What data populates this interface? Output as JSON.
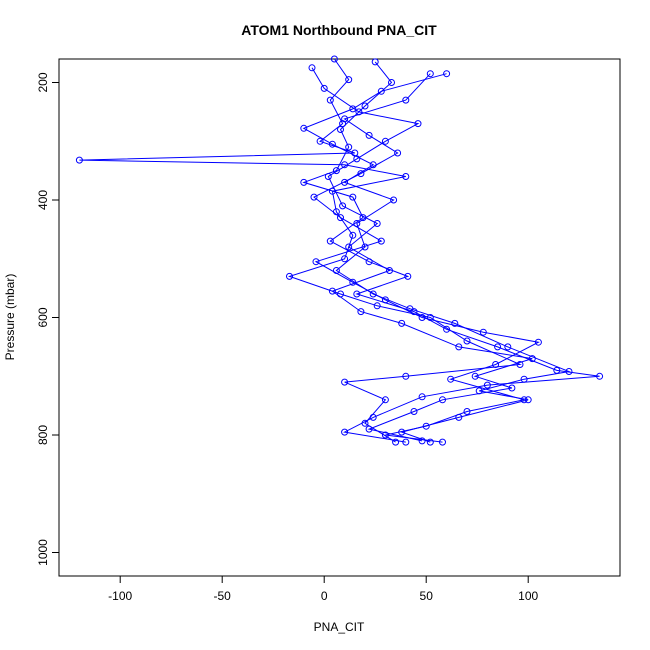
{
  "chart_data": {
    "type": "scatter",
    "title": "ATOM1 Northbound PNA_CIT",
    "xlabel": "PNA_CIT",
    "ylabel": "Pressure (mbar)",
    "xlim": [
      -130,
      145
    ],
    "ylim": [
      1040,
      160
    ],
    "y_reversed": true,
    "x_ticks": [
      -100,
      -50,
      0,
      50,
      100
    ],
    "y_ticks": [
      200,
      400,
      600,
      800,
      1000
    ],
    "grid": false,
    "legend": "none",
    "series_color": "#0000ff",
    "marker": "open-circle",
    "connect_points": true,
    "series": [
      {
        "values": [
          [
            5,
            160
          ],
          [
            12,
            195
          ],
          [
            3,
            230
          ],
          [
            9,
            270
          ],
          [
            -2,
            300
          ],
          [
            15,
            320
          ],
          [
            -120,
            332
          ],
          [
            10,
            340
          ],
          [
            40,
            360
          ],
          [
            4,
            385
          ],
          [
            6,
            420
          ],
          [
            14,
            460
          ],
          [
            10,
            500
          ],
          [
            -17,
            530
          ],
          [
            8,
            560
          ],
          [
            26,
            580
          ],
          [
            52,
            600
          ],
          [
            70,
            640
          ],
          [
            96,
            680
          ],
          [
            40,
            700
          ],
          [
            10,
            710
          ],
          [
            30,
            740
          ],
          [
            20,
            780
          ],
          [
            35,
            812
          ]
        ]
      },
      {
        "values": [
          [
            25,
            165
          ],
          [
            33,
            200
          ],
          [
            20,
            240
          ],
          [
            8,
            280
          ],
          [
            12,
            310
          ],
          [
            6,
            350
          ],
          [
            -10,
            370
          ],
          [
            14,
            395
          ],
          [
            19,
            430
          ],
          [
            3,
            470
          ],
          [
            22,
            505
          ],
          [
            41,
            530
          ],
          [
            16,
            560
          ],
          [
            44,
            590
          ],
          [
            60,
            620
          ],
          [
            85,
            650
          ],
          [
            114,
            690
          ],
          [
            135,
            700
          ],
          [
            80,
            715
          ],
          [
            48,
            735
          ],
          [
            24,
            770
          ],
          [
            10,
            795
          ],
          [
            40,
            812
          ]
        ]
      },
      {
        "values": [
          [
            -6,
            175
          ],
          [
            0,
            210
          ],
          [
            17,
            250
          ],
          [
            46,
            270
          ],
          [
            30,
            300
          ],
          [
            16,
            330
          ],
          [
            2,
            360
          ],
          [
            9,
            410
          ],
          [
            26,
            440
          ],
          [
            12,
            480
          ],
          [
            32,
            520
          ],
          [
            4,
            555
          ],
          [
            18,
            590
          ],
          [
            38,
            610
          ],
          [
            66,
            650
          ],
          [
            102,
            670
          ],
          [
            74,
            700
          ],
          [
            92,
            720
          ],
          [
            58,
            740
          ],
          [
            44,
            760
          ],
          [
            22,
            790
          ],
          [
            48,
            810
          ]
        ]
      },
      {
        "values": [
          [
            52,
            185
          ],
          [
            40,
            230
          ],
          [
            10,
            262
          ],
          [
            22,
            290
          ],
          [
            36,
            320
          ],
          [
            18,
            355
          ],
          [
            -5,
            395
          ],
          [
            8,
            430
          ],
          [
            28,
            470
          ],
          [
            -4,
            505
          ],
          [
            14,
            540
          ],
          [
            30,
            570
          ],
          [
            48,
            600
          ],
          [
            78,
            625
          ],
          [
            105,
            642
          ],
          [
            84,
            680
          ],
          [
            62,
            705
          ],
          [
            98,
            740
          ],
          [
            70,
            760
          ],
          [
            50,
            785
          ],
          [
            30,
            800
          ],
          [
            58,
            812
          ]
        ]
      },
      {
        "values": [
          [
            60,
            185
          ],
          [
            28,
            215
          ],
          [
            14,
            245
          ],
          [
            -10,
            278
          ],
          [
            4,
            305
          ],
          [
            24,
            340
          ],
          [
            10,
            370
          ],
          [
            34,
            400
          ],
          [
            16,
            440
          ],
          [
            20,
            480
          ],
          [
            6,
            520
          ],
          [
            24,
            560
          ],
          [
            42,
            585
          ],
          [
            64,
            610
          ],
          [
            90,
            650
          ],
          [
            120,
            692
          ],
          [
            98,
            705
          ],
          [
            76,
            725
          ],
          [
            100,
            740
          ],
          [
            66,
            770
          ],
          [
            38,
            795
          ],
          [
            52,
            812
          ]
        ]
      }
    ]
  }
}
